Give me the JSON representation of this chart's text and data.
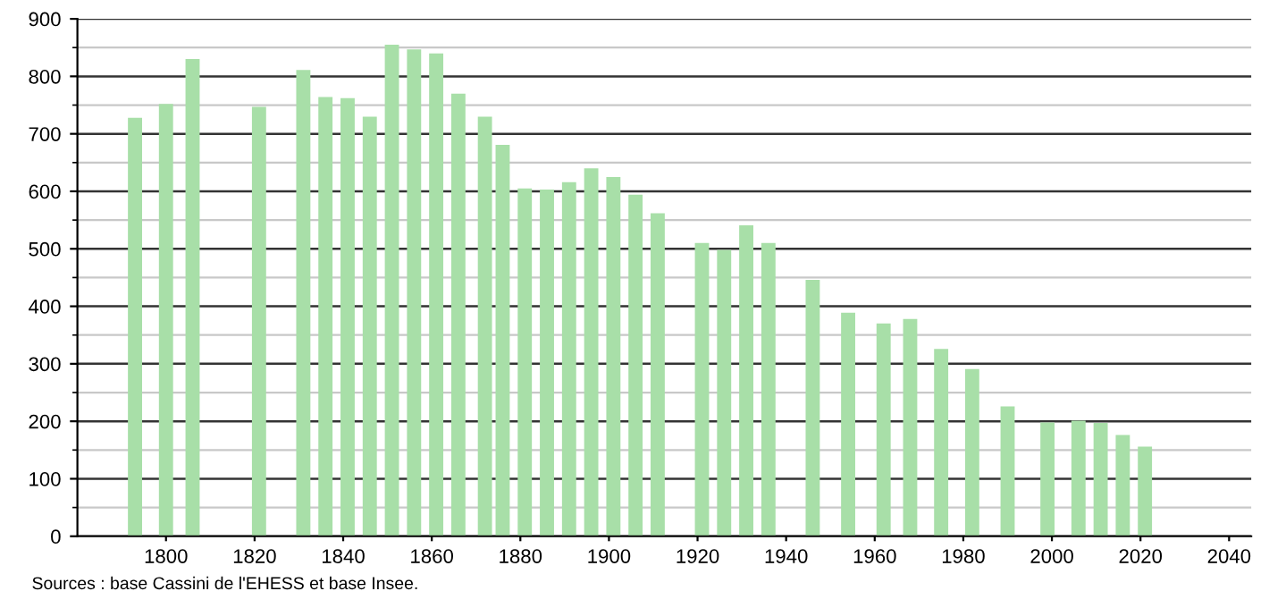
{
  "chart_data": {
    "type": "bar",
    "x": [
      1793,
      1800,
      1806,
      1821,
      1831,
      1836,
      1841,
      1846,
      1851,
      1856,
      1861,
      1866,
      1872,
      1876,
      1881,
      1886,
      1891,
      1896,
      1901,
      1906,
      1911,
      1921,
      1926,
      1931,
      1936,
      1946,
      1954,
      1962,
      1968,
      1975,
      1982,
      1990,
      1999,
      2006,
      2011,
      2016,
      2021
    ],
    "values": [
      728,
      752,
      830,
      747,
      811,
      764,
      762,
      730,
      855,
      847,
      840,
      770,
      730,
      681,
      605,
      603,
      616,
      640,
      625,
      594,
      562,
      510,
      498,
      541,
      510,
      446,
      389,
      370,
      378,
      326,
      291,
      226,
      198,
      201,
      197,
      176,
      156
    ],
    "color": "#a8dfa8",
    "xlim": [
      1780,
      2045
    ],
    "xticks": [
      1800,
      1820,
      1840,
      1860,
      1880,
      1900,
      1920,
      1940,
      1960,
      1980,
      2000,
      2020,
      2040
    ],
    "ylim": [
      0,
      900
    ],
    "yticks": [
      0,
      100,
      200,
      300,
      400,
      500,
      600,
      700,
      800,
      900
    ],
    "grid": "y",
    "annotations": [
      "Sources : base Cassini de l'EHESS et base Insee."
    ]
  }
}
